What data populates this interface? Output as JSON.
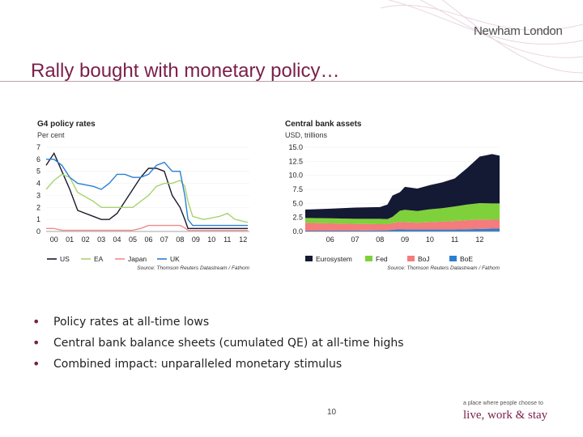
{
  "brand": {
    "name": "Newham London"
  },
  "slide": {
    "title": "Rally bought with monetary policy…",
    "page_number": "10"
  },
  "tagline": {
    "small": "a place where people choose to",
    "large": "live, work & stay"
  },
  "bullets": [
    "Policy rates at all-time lows",
    "Central bank balance sheets (cumulated QE) at all-time highs",
    "Combined impact: unparalleled monetary stimulus"
  ],
  "colors": {
    "accent": "#7a1f4a",
    "us": "#1a1a2e",
    "ea": "#a8d36f",
    "japan": "#f08a8a",
    "uk": "#2a7fd4",
    "eurosystem": "#141a33",
    "fed": "#7fd13b",
    "boj": "#f47c7c",
    "boe": "#2a7fd4"
  },
  "chart_data": [
    {
      "type": "line",
      "title": "G4 policy rates",
      "ylabel": "Per cent",
      "ylim": [
        0,
        7
      ],
      "yticks": [
        "0",
        "1",
        "2",
        "3",
        "4",
        "5",
        "6",
        "7"
      ],
      "categories": [
        "00",
        "01",
        "02",
        "03",
        "04",
        "05",
        "06",
        "07",
        "08",
        "09",
        "10",
        "11",
        "12"
      ],
      "x": [
        2000,
        2000.5,
        2001,
        2001.5,
        2002,
        2003,
        2003.5,
        2004,
        2004.5,
        2005,
        2005.5,
        2006,
        2006.5,
        2007,
        2007.5,
        2008,
        2008.5,
        2008.8,
        2009,
        2009.3,
        2010,
        2011,
        2011.5,
        2012,
        2012.8
      ],
      "series": [
        {
          "name": "US",
          "values": [
            5.5,
            6.5,
            5.0,
            3.5,
            1.75,
            1.25,
            1.0,
            1.0,
            1.5,
            2.5,
            3.5,
            4.5,
            5.25,
            5.25,
            5.0,
            3.0,
            2.0,
            1.0,
            0.25,
            0.25,
            0.25,
            0.25,
            0.25,
            0.25,
            0.25
          ]
        },
        {
          "name": "EA",
          "values": [
            3.5,
            4.25,
            4.75,
            4.5,
            3.25,
            2.5,
            2.0,
            2.0,
            2.0,
            2.0,
            2.0,
            2.5,
            3.0,
            3.75,
            4.0,
            4.0,
            4.25,
            3.75,
            2.5,
            1.25,
            1.0,
            1.25,
            1.5,
            1.0,
            0.75
          ]
        },
        {
          "name": "Japan",
          "values": [
            0.25,
            0.25,
            0.1,
            0.1,
            0.1,
            0.1,
            0.1,
            0.1,
            0.1,
            0.1,
            0.1,
            0.25,
            0.5,
            0.5,
            0.5,
            0.5,
            0.5,
            0.3,
            0.1,
            0.1,
            0.1,
            0.1,
            0.1,
            0.1,
            0.1
          ]
        },
        {
          "name": "UK",
          "values": [
            6.0,
            6.0,
            5.5,
            4.5,
            4.0,
            3.75,
            3.5,
            4.0,
            4.75,
            4.75,
            4.5,
            4.5,
            4.75,
            5.5,
            5.75,
            5.0,
            5.0,
            3.0,
            1.0,
            0.5,
            0.5,
            0.5,
            0.5,
            0.5,
            0.5
          ]
        }
      ],
      "legend": [
        "US",
        "EA",
        "Japan",
        "UK"
      ],
      "source": "Source: Thomson Reuters Datastream / Fathom"
    },
    {
      "type": "area",
      "title": "Central bank assets",
      "ylabel": "USD, trillions",
      "ylim": [
        0,
        15
      ],
      "yticks": [
        "0.0",
        "2.5",
        "5.0",
        "7.5",
        "10.0",
        "12.5",
        "15.0"
      ],
      "categories": [
        "06",
        "07",
        "08",
        "09",
        "10",
        "11",
        "12"
      ],
      "x": [
        2005,
        2006,
        2007,
        2008,
        2008.3,
        2008.5,
        2008.8,
        2009,
        2009.5,
        2010,
        2010.5,
        2011,
        2011.5,
        2012,
        2012.5,
        2012.8
      ],
      "series": [
        {
          "name": "BoE",
          "values": [
            0.15,
            0.15,
            0.15,
            0.2,
            0.2,
            0.3,
            0.4,
            0.35,
            0.35,
            0.35,
            0.35,
            0.35,
            0.4,
            0.45,
            0.5,
            0.5
          ]
        },
        {
          "name": "BoJ",
          "values": [
            1.4,
            1.3,
            1.2,
            1.1,
            1.1,
            1.2,
            1.3,
            1.3,
            1.2,
            1.3,
            1.4,
            1.5,
            1.6,
            1.7,
            1.6,
            1.6
          ]
        },
        {
          "name": "Fed",
          "values": [
            0.85,
            0.9,
            0.9,
            0.95,
            0.9,
            1.1,
            2.0,
            2.2,
            2.1,
            2.3,
            2.4,
            2.6,
            2.8,
            2.9,
            2.9,
            2.9
          ]
        },
        {
          "name": "Eurosystem",
          "values": [
            1.5,
            1.7,
            2.0,
            2.1,
            2.6,
            3.8,
            3.3,
            4.1,
            4.0,
            4.3,
            4.6,
            5.0,
            6.5,
            8.3,
            8.8,
            8.5
          ]
        }
      ],
      "legend": [
        "Eurosystem",
        "Fed",
        "BoJ",
        "BoE"
      ],
      "source": "Source: Thomson Reuters Datastream / Fathom"
    }
  ]
}
